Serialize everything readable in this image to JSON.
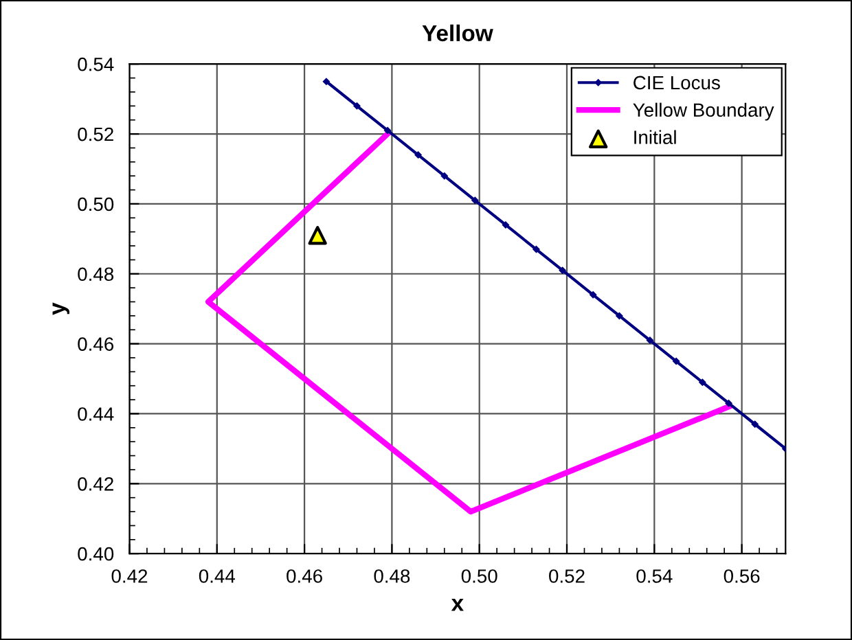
{
  "chart_data": {
    "type": "line",
    "title": "Yellow",
    "xlabel": "x",
    "ylabel": "y",
    "xlim": [
      0.42,
      0.57
    ],
    "ylim": [
      0.4,
      0.54
    ],
    "xticks": [
      {
        "value": 0.42,
        "label": "0.42"
      },
      {
        "value": 0.44,
        "label": "0.44"
      },
      {
        "value": 0.46,
        "label": "0.46"
      },
      {
        "value": 0.48,
        "label": "0.48"
      },
      {
        "value": 0.5,
        "label": "0.50"
      },
      {
        "value": 0.52,
        "label": "0.52"
      },
      {
        "value": 0.54,
        "label": "0.54"
      },
      {
        "value": 0.56,
        "label": "0.56"
      }
    ],
    "yticks": [
      {
        "value": 0.4,
        "label": "0.40"
      },
      {
        "value": 0.42,
        "label": "0.42"
      },
      {
        "value": 0.44,
        "label": "0.44"
      },
      {
        "value": 0.46,
        "label": "0.46"
      },
      {
        "value": 0.48,
        "label": "0.48"
      },
      {
        "value": 0.5,
        "label": "0.50"
      },
      {
        "value": 0.52,
        "label": "0.52"
      },
      {
        "value": 0.54,
        "label": "0.54"
      }
    ],
    "grid": true,
    "legend": "top right",
    "series": [
      {
        "name": "CIE Locus",
        "color": "#000080",
        "marker": "diamond",
        "x": [
          0.465,
          0.472,
          0.479,
          0.486,
          0.492,
          0.499,
          0.506,
          0.513,
          0.519,
          0.526,
          0.532,
          0.539,
          0.545,
          0.551,
          0.557,
          0.563,
          0.57
        ],
        "values": [
          0.535,
          0.528,
          0.521,
          0.514,
          0.508,
          0.501,
          0.494,
          0.487,
          0.481,
          0.474,
          0.468,
          0.461,
          0.455,
          0.449,
          0.443,
          0.437,
          0.43
        ]
      },
      {
        "name": "Yellow Boundary",
        "color": "#ff00ff",
        "marker": "none",
        "x": [
          0.479,
          0.438,
          0.498,
          0.557
        ],
        "values": [
          0.52,
          0.472,
          0.412,
          0.442
        ]
      },
      {
        "name": "Initial",
        "type": "scatter",
        "color": "#ffff00",
        "marker": "triangle",
        "x": [
          0.463
        ],
        "values": [
          0.491
        ]
      }
    ]
  }
}
